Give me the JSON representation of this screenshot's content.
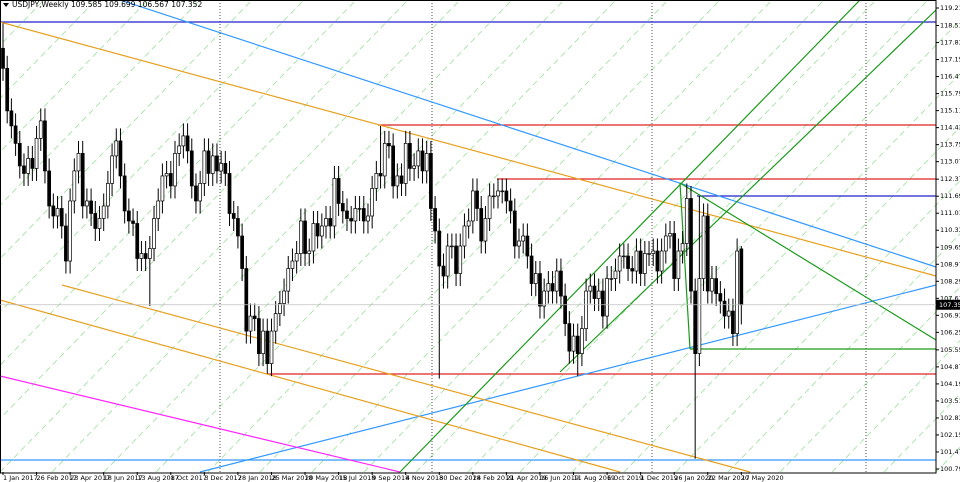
{
  "chart_data": {
    "type": "candlestick",
    "title": "USDJPY,Weekly  109.585 109.699 106.567 107.352",
    "price_label": "107.352",
    "up_color": "#ffffff",
    "down_color": "#000000",
    "edge_color": "#000000",
    "categories": [
      "1 Jan 2017",
      null,
      null,
      null,
      null,
      null,
      null,
      null,
      "26 Feb 2017",
      null,
      null,
      null,
      null,
      null,
      null,
      null,
      "23 Apr 2017",
      null,
      null,
      null,
      null,
      null,
      null,
      null,
      "18 Jun 2017",
      null,
      null,
      null,
      null,
      null,
      null,
      null,
      "13 Aug 2017",
      null,
      null,
      null,
      null,
      null,
      null,
      null,
      "8 Oct 2017",
      null,
      null,
      null,
      null,
      null,
      null,
      null,
      "3 Dec 2017",
      null,
      null,
      null,
      null,
      null,
      null,
      null,
      "28 Jan 2018",
      null,
      null,
      null,
      null,
      null,
      null,
      null,
      "25 Mar 2018",
      null,
      null,
      null,
      null,
      null,
      null,
      null,
      "20 May 2018",
      null,
      null,
      null,
      null,
      null,
      null,
      null,
      "15 Jul 2018",
      null,
      null,
      null,
      null,
      null,
      null,
      null,
      "9 Sep 2018",
      null,
      null,
      null,
      null,
      null,
      null,
      null,
      "4 Nov 2018",
      null,
      null,
      null,
      null,
      null,
      null,
      null,
      "30 Dec 2018",
      null,
      null,
      null,
      null,
      null,
      null,
      null,
      "24 Feb 2019",
      null,
      null,
      null,
      null,
      null,
      null,
      null,
      "21 Apr 2019",
      null,
      null,
      null,
      null,
      null,
      null,
      null,
      "16 Jun 2019",
      null,
      null,
      null,
      null,
      null,
      null,
      null,
      "11 Aug 2019",
      null,
      null,
      null,
      null,
      null,
      null,
      null,
      "6 Oct 2019",
      null,
      null,
      null,
      null,
      null,
      null,
      null,
      "1 Dec 2019",
      null,
      null,
      null,
      null,
      null,
      null,
      null,
      "26 Jan 2020",
      null,
      null,
      null,
      null,
      null,
      null,
      null,
      "22 Mar 2020",
      null,
      null,
      null,
      null,
      null,
      null,
      null,
      "17 May 2020"
    ],
    "open": [
      117.6,
      116.8,
      115.1,
      114.5,
      113.8,
      112.9,
      112.6,
      113.2,
      112.8,
      114.0,
      114.7,
      112.7,
      111.3,
      110.9,
      111.2,
      110.5,
      109.1,
      111.5,
      112.7,
      113.4,
      111.3,
      111.5,
      111.0,
      110.4,
      110.8,
      111.3,
      112.2,
      113.3,
      113.9,
      112.5,
      111.1,
      110.7,
      110.6,
      109.2,
      109.4,
      109.2,
      109.6,
      110.8,
      111.5,
      112.5,
      112.6,
      112.1,
      113.4,
      113.7,
      114.1,
      113.5,
      112.1,
      111.5,
      112.2,
      113.5,
      112.6,
      113.3,
      112.7,
      113.0,
      112.6,
      111.0,
      110.8,
      110.1,
      108.8,
      106.3,
      106.9,
      106.8,
      105.4,
      106.3,
      105.0,
      106.3,
      107.0,
      107.4,
      107.9,
      108.8,
      109.1,
      109.4,
      110.7,
      109.4,
      109.5,
      110.6,
      110.1,
      110.5,
      110.8,
      110.5,
      112.4,
      111.4,
      111.1,
      110.8,
      110.7,
      111.2,
      111.2,
      110.7,
      110.9,
      112.0,
      112.6,
      112.5,
      113.8,
      113.7,
      112.1,
      112.5,
      112.2,
      113.8,
      112.8,
      112.9,
      113.5,
      112.7,
      113.4,
      111.2,
      110.3,
      108.9,
      108.5,
      109.7,
      109.7,
      108.6,
      109.7,
      110.5,
      110.7,
      111.9,
      111.2,
      109.9,
      110.8,
      111.7,
      111.7,
      111.9,
      111.9,
      111.5,
      111.1,
      109.7,
      109.9,
      110.1,
      109.3,
      108.2,
      108.6,
      107.3,
      107.9,
      108.2,
      107.9,
      108.7,
      107.7,
      106.6,
      105.5,
      106.1,
      105.4,
      106.4,
      107.9,
      108.1,
      107.6,
      107.9,
      106.9,
      108.4,
      108.4,
      108.7,
      109.3,
      109.3,
      108.8,
      108.7,
      109.5,
      108.6,
      109.4,
      109.4,
      109.5,
      108.7,
      109.5,
      110.1,
      110.2,
      108.4,
      109.5,
      109.8,
      111.6,
      107.9,
      105.4,
      108.4,
      110.9,
      107.9,
      108.4,
      107.8,
      107.5,
      106.9,
      107.1,
      106.2,
      109.585
    ],
    "high": [
      118.6,
      117.3,
      115.6,
      115.0,
      114.3,
      113.4,
      113.7,
      113.7,
      114.5,
      115.2,
      115.2,
      113.2,
      111.8,
      111.7,
      111.7,
      111.0,
      112.0,
      113.2,
      113.9,
      113.9,
      112.0,
      112.0,
      111.5,
      111.3,
      111.8,
      112.7,
      113.8,
      114.4,
      114.4,
      113.0,
      111.6,
      111.2,
      111.1,
      109.9,
      109.9,
      110.1,
      111.3,
      112.0,
      113.0,
      113.1,
      113.1,
      113.9,
      114.2,
      114.6,
      114.6,
      114.0,
      112.6,
      112.7,
      114.0,
      114.0,
      113.8,
      113.8,
      113.5,
      113.5,
      113.1,
      111.5,
      111.3,
      110.6,
      109.3,
      107.4,
      107.4,
      107.3,
      106.8,
      106.8,
      106.8,
      107.5,
      107.9,
      108.4,
      109.3,
      109.6,
      109.9,
      111.2,
      111.2,
      110.0,
      111.1,
      111.1,
      111.0,
      111.3,
      111.3,
      112.9,
      112.9,
      111.9,
      111.6,
      111.3,
      111.7,
      111.7,
      111.7,
      111.4,
      112.5,
      113.1,
      114.5,
      114.3,
      114.3,
      114.2,
      113.0,
      113.0,
      114.3,
      114.3,
      113.4,
      114.0,
      114.0,
      113.9,
      113.9,
      111.7,
      110.8,
      109.4,
      110.2,
      110.2,
      110.2,
      110.2,
      111.0,
      111.2,
      112.4,
      112.4,
      111.7,
      111.3,
      112.2,
      112.2,
      112.4,
      112.4,
      112.4,
      112.0,
      111.6,
      110.4,
      110.6,
      110.6,
      109.8,
      109.1,
      109.1,
      108.4,
      108.7,
      108.7,
      109.2,
      109.2,
      108.2,
      107.1,
      106.6,
      106.6,
      106.9,
      108.4,
      108.6,
      108.6,
      108.4,
      108.4,
      108.9,
      108.9,
      109.2,
      109.8,
      109.8,
      109.8,
      109.3,
      110.0,
      110.0,
      109.9,
      109.9,
      110.0,
      110.0,
      110.0,
      110.6,
      110.7,
      110.7,
      110.0,
      110.3,
      112.2,
      112.1,
      108.4,
      111.7,
      111.4,
      111.4,
      108.9,
      108.9,
      108.3,
      108.0,
      107.6,
      107.6,
      110.0,
      109.699
    ],
    "low": [
      116.3,
      114.6,
      114.0,
      113.3,
      112.4,
      112.1,
      112.1,
      112.3,
      112.3,
      113.5,
      112.2,
      110.8,
      110.4,
      110.4,
      110.0,
      108.6,
      108.6,
      111.0,
      112.2,
      110.8,
      110.8,
      110.5,
      109.9,
      109.9,
      110.3,
      110.8,
      111.7,
      112.8,
      112.0,
      110.6,
      110.2,
      110.1,
      108.7,
      108.7,
      108.7,
      107.3,
      109.1,
      110.3,
      111.0,
      112.0,
      111.6,
      111.6,
      112.9,
      113.2,
      113.0,
      111.6,
      111.0,
      111.0,
      111.7,
      112.1,
      112.1,
      112.2,
      112.2,
      112.1,
      110.5,
      110.3,
      109.6,
      108.3,
      105.8,
      105.8,
      106.3,
      104.9,
      104.9,
      104.6,
      104.5,
      105.8,
      106.5,
      106.9,
      107.4,
      108.3,
      108.6,
      108.9,
      108.9,
      108.9,
      109.0,
      109.6,
      109.6,
      110.0,
      110.0,
      110.0,
      110.9,
      110.6,
      110.3,
      110.2,
      110.2,
      110.7,
      110.2,
      110.2,
      110.4,
      111.5,
      112.0,
      112.0,
      113.2,
      111.6,
      111.6,
      111.7,
      111.7,
      112.3,
      112.3,
      112.4,
      112.2,
      112.2,
      110.7,
      109.8,
      104.4,
      108.0,
      108.0,
      109.2,
      108.1,
      108.1,
      109.2,
      110.0,
      110.2,
      110.7,
      109.4,
      109.4,
      110.3,
      111.2,
      111.2,
      111.4,
      111.0,
      110.6,
      109.2,
      109.2,
      109.4,
      108.8,
      107.7,
      107.7,
      106.8,
      106.8,
      107.4,
      107.4,
      107.4,
      107.2,
      106.1,
      105.0,
      105.0,
      104.5,
      104.9,
      105.9,
      107.4,
      107.1,
      107.1,
      106.4,
      106.4,
      107.9,
      107.9,
      108.2,
      108.8,
      108.3,
      108.2,
      108.2,
      108.1,
      108.1,
      108.9,
      108.9,
      108.2,
      108.2,
      109.0,
      109.6,
      107.9,
      107.9,
      109.0,
      109.3,
      107.4,
      101.2,
      104.9,
      107.9,
      107.4,
      107.4,
      107.3,
      107.0,
      106.4,
      106.4,
      105.7,
      105.7,
      106.567
    ],
    "close": [
      116.8,
      115.1,
      114.5,
      113.8,
      112.9,
      112.6,
      113.2,
      112.8,
      114.0,
      114.7,
      112.7,
      111.3,
      110.9,
      111.2,
      110.5,
      109.1,
      111.5,
      112.7,
      113.4,
      111.3,
      111.5,
      111.0,
      110.4,
      110.8,
      111.3,
      112.2,
      113.3,
      113.9,
      112.5,
      111.1,
      110.7,
      110.6,
      109.2,
      109.4,
      109.2,
      109.6,
      110.8,
      111.5,
      112.5,
      112.6,
      112.1,
      113.4,
      113.7,
      114.1,
      113.5,
      112.1,
      111.5,
      112.2,
      113.5,
      112.6,
      113.3,
      112.7,
      113.0,
      112.6,
      111.0,
      110.8,
      110.1,
      108.8,
      106.3,
      106.9,
      106.8,
      105.4,
      106.3,
      105.0,
      106.3,
      107.0,
      107.4,
      107.9,
      108.8,
      109.1,
      109.4,
      110.7,
      109.4,
      109.5,
      110.6,
      110.1,
      110.5,
      110.8,
      110.5,
      112.4,
      111.4,
      111.1,
      110.8,
      110.7,
      111.2,
      111.2,
      110.7,
      110.9,
      112.0,
      112.6,
      112.5,
      113.8,
      113.7,
      112.1,
      112.5,
      112.2,
      113.8,
      112.8,
      112.9,
      113.5,
      112.7,
      113.4,
      111.2,
      110.3,
      108.9,
      108.5,
      109.7,
      109.7,
      108.6,
      109.7,
      110.5,
      110.7,
      111.9,
      111.2,
      109.9,
      110.8,
      111.7,
      111.7,
      111.9,
      111.9,
      111.5,
      111.1,
      109.7,
      109.9,
      110.1,
      109.3,
      108.2,
      108.6,
      107.3,
      107.9,
      108.2,
      107.9,
      108.7,
      107.7,
      106.6,
      105.5,
      106.1,
      105.4,
      106.4,
      107.9,
      108.1,
      107.6,
      107.9,
      106.9,
      108.4,
      108.4,
      108.7,
      109.3,
      109.3,
      108.8,
      108.7,
      109.5,
      108.6,
      109.4,
      109.4,
      109.5,
      108.7,
      109.5,
      110.1,
      110.2,
      108.4,
      109.5,
      109.8,
      111.6,
      107.9,
      105.4,
      108.4,
      110.9,
      107.9,
      108.4,
      107.8,
      107.5,
      106.9,
      107.1,
      106.2,
      109.5,
      107.352
    ],
    "ylim": [
      100.67,
      119.53
    ],
    "yticks": [
      {
        "value": 119.21,
        "label": "119.210"
      },
      {
        "value": 118.51,
        "label": "118.510"
      },
      {
        "value": 117.83,
        "label": "117.830"
      },
      {
        "value": 117.15,
        "label": "117.150"
      },
      {
        "value": 116.47,
        "label": "116.470"
      },
      {
        "value": 115.79,
        "label": "115.790"
      },
      {
        "value": 115.11,
        "label": "115.110"
      },
      {
        "value": 114.43,
        "label": "114.430"
      },
      {
        "value": 113.75,
        "label": "113.750"
      },
      {
        "value": 113.07,
        "label": "113.070"
      },
      {
        "value": 112.37,
        "label": "112.370"
      },
      {
        "value": 111.69,
        "label": "111.690"
      },
      {
        "value": 111.01,
        "label": "111.010"
      },
      {
        "value": 110.33,
        "label": "110.330"
      },
      {
        "value": 109.65,
        "label": "109.650"
      },
      {
        "value": 108.97,
        "label": "108.970"
      },
      {
        "value": 108.29,
        "label": "108.290"
      },
      {
        "value": 107.61,
        "label": "107.610"
      },
      {
        "value": 106.93,
        "label": "106.930"
      },
      {
        "value": 106.25,
        "label": "106.250"
      },
      {
        "value": 105.55,
        "label": "105.550"
      },
      {
        "value": 104.87,
        "label": "104.870"
      },
      {
        "value": 104.19,
        "label": "104.190"
      },
      {
        "value": 103.51,
        "label": "103.510"
      },
      {
        "value": 102.83,
        "label": "102.830"
      },
      {
        "value": 102.15,
        "label": "102.150"
      },
      {
        "value": 101.47,
        "label": "101.470"
      },
      {
        "value": 100.79,
        "label": "100.790"
      }
    ],
    "grid": false
  }
}
